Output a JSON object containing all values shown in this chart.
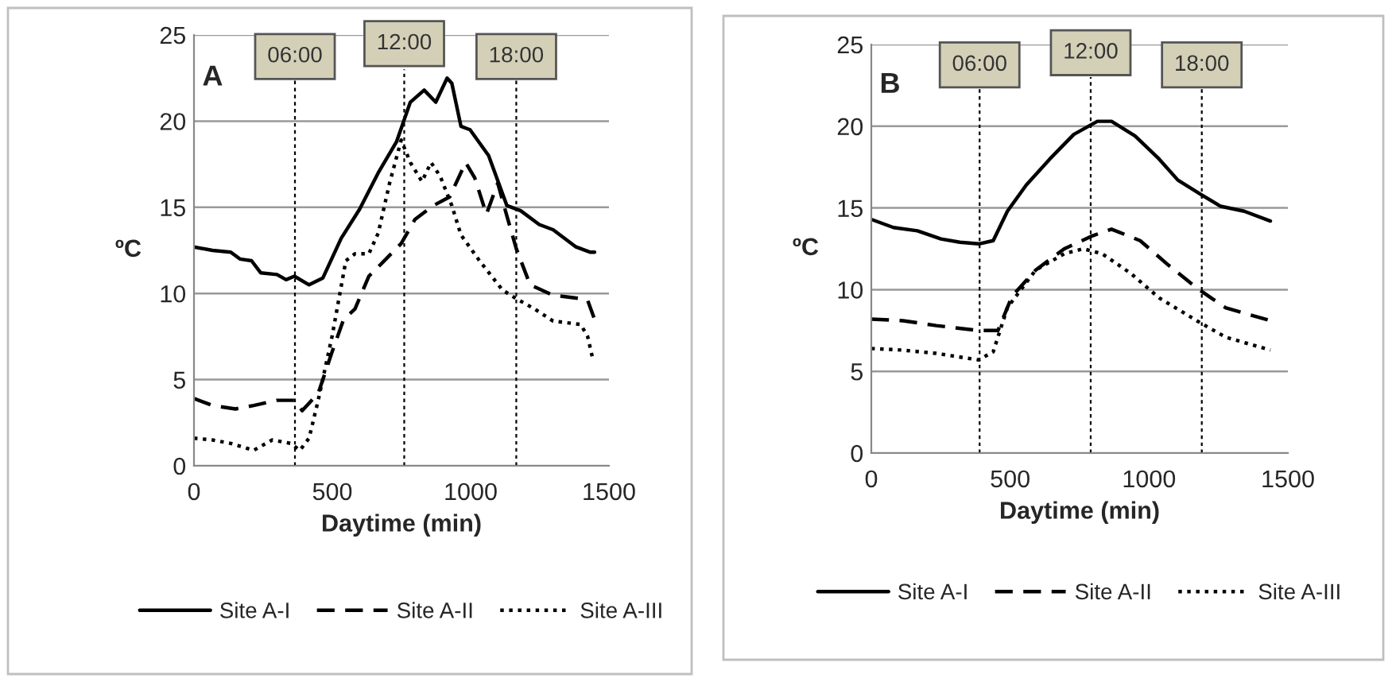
{
  "chart_data": [
    {
      "type": "line",
      "title": "A",
      "xlabel": "Daytime (min)",
      "ylabel": "ºC",
      "xlim": [
        0,
        1500
      ],
      "xticks": [
        0,
        500,
        1000,
        1500
      ],
      "ylim": [
        0,
        25
      ],
      "yticks": [
        0,
        5,
        10,
        15,
        20,
        25
      ],
      "grid": "y",
      "legend": "bottom",
      "marker": "none",
      "ref_lines": [
        {
          "axis": "x",
          "value": 365,
          "line_style": "dashed"
        },
        {
          "axis": "x",
          "value": 760,
          "line_style": "dashed"
        },
        {
          "axis": "x",
          "value": 1165,
          "line_style": "dashed"
        }
      ],
      "annotations": [
        "06:00",
        "12:00",
        "18:00"
      ],
      "series": [
        {
          "name": "Site A-I",
          "color": "#000000",
          "line_style": "solid",
          "x": [
            0,
            67,
            133,
            166,
            208,
            241,
            300,
            333,
            363,
            416,
            466,
            532,
            599,
            666,
            732,
            782,
            832,
            874,
            915,
            932,
            965,
            998,
            1065,
            1131,
            1181,
            1248,
            1298,
            1381,
            1431,
            1448
          ],
          "values": [
            12.7,
            12.5,
            12.4,
            12.0,
            11.9,
            11.2,
            11.1,
            10.8,
            11.0,
            10.5,
            10.9,
            13.2,
            14.9,
            17.0,
            18.8,
            21.1,
            21.8,
            21.1,
            22.5,
            22.2,
            19.7,
            19.5,
            18.0,
            15.1,
            14.8,
            14.0,
            13.7,
            12.7,
            12.4,
            12.4
          ]
        },
        {
          "name": "Site A-II",
          "color": "#000000",
          "line_style": "dashed",
          "x": [
            0,
            67,
            150,
            216,
            300,
            363,
            391,
            449,
            499,
            541,
            582,
            632,
            682,
            749,
            799,
            865,
            924,
            982,
            1015,
            1057,
            1098,
            1131,
            1165,
            1215,
            1298,
            1398,
            1423,
            1448
          ],
          "values": [
            3.9,
            3.5,
            3.3,
            3.5,
            3.8,
            3.8,
            3.2,
            4.2,
            6.6,
            8.5,
            9.1,
            11.0,
            11.8,
            12.9,
            14.3,
            15.1,
            15.6,
            17.6,
            16.7,
            14.6,
            16.4,
            14.5,
            12.6,
            10.5,
            9.9,
            9.7,
            9.6,
            8.5
          ]
        },
        {
          "name": "Site A-III",
          "color": "#000000",
          "line_style": "dotted",
          "x": [
            0,
            67,
            133,
            216,
            283,
            349,
            383,
            416,
            449,
            499,
            549,
            582,
            632,
            666,
            707,
            749,
            782,
            824,
            857,
            890,
            932,
            965,
            1032,
            1115,
            1165,
            1231,
            1298,
            1398,
            1423,
            1440
          ],
          "values": [
            1.6,
            1.5,
            1.3,
            0.9,
            1.5,
            1.3,
            0.9,
            1.6,
            3.8,
            7.5,
            11.9,
            12.3,
            12.3,
            13.5,
            16.4,
            18.9,
            17.6,
            16.5,
            17.6,
            16.8,
            15.1,
            13.4,
            11.9,
            10.2,
            9.7,
            9.1,
            8.4,
            8.2,
            7.5,
            6.3
          ]
        }
      ]
    },
    {
      "type": "line",
      "title": "B",
      "xlabel": "Daytime (min)",
      "ylabel": "ºC",
      "xlim": [
        0,
        1500
      ],
      "xticks": [
        0,
        500,
        1000,
        1500
      ],
      "ylim": [
        0,
        25
      ],
      "yticks": [
        0,
        5,
        10,
        15,
        20,
        25
      ],
      "grid": "y",
      "legend": "bottom",
      "marker": "none",
      "ref_lines": [
        {
          "axis": "x",
          "value": 390,
          "line_style": "dashed"
        },
        {
          "axis": "x",
          "value": 790,
          "line_style": "dashed"
        },
        {
          "axis": "x",
          "value": 1190,
          "line_style": "dashed"
        }
      ],
      "annotations": [
        "06:00",
        "12:00",
        "18:00"
      ],
      "series": [
        {
          "name": "Site A-I",
          "color": "#000000",
          "line_style": "solid",
          "x": [
            0,
            80,
            166,
            251,
            319,
            387,
            439,
            490,
            558,
            643,
            729,
            814,
            865,
            950,
            1036,
            1104,
            1189,
            1258,
            1343,
            1437
          ],
          "values": [
            14.3,
            13.8,
            13.6,
            13.1,
            12.9,
            12.8,
            13.0,
            14.8,
            16.4,
            18.0,
            19.5,
            20.3,
            20.3,
            19.4,
            18.0,
            16.7,
            15.8,
            15.1,
            14.8,
            14.2
          ]
        },
        {
          "name": "Site A-II",
          "color": "#000000",
          "line_style": "dashed",
          "x": [
            0,
            114,
            234,
            387,
            456,
            507,
            592,
            695,
            797,
            865,
            968,
            1070,
            1172,
            1275,
            1437
          ],
          "values": [
            8.2,
            8.1,
            7.8,
            7.5,
            7.5,
            9.6,
            11.2,
            12.5,
            13.3,
            13.7,
            13.0,
            11.5,
            10.1,
            8.9,
            8.1
          ]
        },
        {
          "name": "Site A-III",
          "color": "#000000",
          "line_style": "dotted",
          "x": [
            0,
            114,
            234,
            387,
            439,
            490,
            592,
            695,
            763,
            831,
            934,
            1036,
            1172,
            1275,
            1437
          ],
          "values": [
            6.4,
            6.3,
            6.1,
            5.7,
            6.2,
            8.9,
            11.2,
            12.2,
            12.5,
            12.2,
            11.0,
            9.5,
            8.1,
            7.1,
            6.3
          ]
        }
      ]
    }
  ]
}
